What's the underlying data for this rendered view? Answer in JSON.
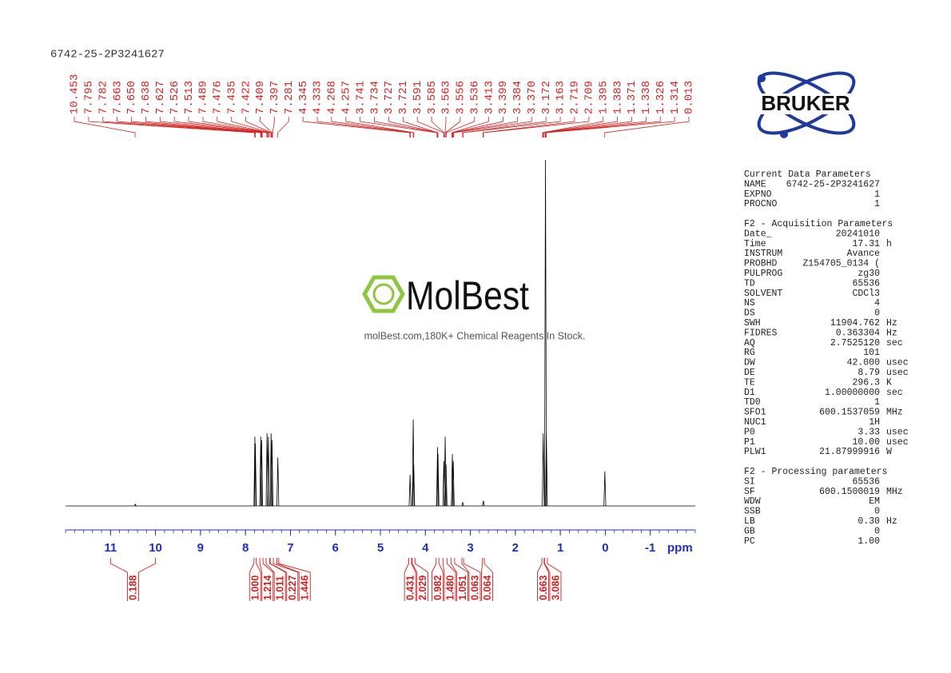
{
  "title": "6742-25-2P3241627",
  "watermark": {
    "brand": "MolBest",
    "tagline": "molBest.com,180K+ Chemical Reagents In Stock."
  },
  "logo": "BRUKER",
  "chart_data": {
    "type": "nmr",
    "x_label": "ppm",
    "xlim": [
      12.0,
      -2.0
    ],
    "xticks": [
      11,
      10,
      9,
      8,
      7,
      6,
      5,
      4,
      3,
      2,
      1,
      0,
      -1
    ],
    "ylim": [
      0,
      100
    ],
    "color": "#000000",
    "label_color": "#d42020",
    "axis_color": "#1f2fbf",
    "signals": {
      "x": [
        10.45,
        7.79,
        7.78,
        7.66,
        7.64,
        7.52,
        7.49,
        7.43,
        7.41,
        7.28,
        4.34,
        4.27,
        4.26,
        3.73,
        3.72,
        3.59,
        3.56,
        3.54,
        3.4,
        3.38,
        3.17,
        2.71,
        1.38,
        1.33,
        1.31,
        0.01
      ],
      "values": [
        0.5,
        20,
        18,
        20,
        19,
        21,
        20,
        21,
        19,
        14,
        9,
        25,
        12,
        17,
        15,
        13,
        20,
        12,
        15,
        13,
        1,
        1.5,
        21,
        100,
        21,
        10
      ]
    },
    "peaks": {
      "values": [
        10.453,
        7.795,
        7.782,
        7.663,
        7.65,
        7.638,
        7.627,
        7.526,
        7.513,
        7.489,
        7.476,
        7.435,
        7.422,
        7.409,
        7.397,
        7.281,
        4.345,
        4.333,
        4.268,
        4.257,
        3.741,
        3.734,
        3.727,
        3.721,
        3.591,
        3.585,
        3.563,
        3.556,
        3.536,
        3.413,
        3.399,
        3.384,
        3.37,
        3.172,
        3.163,
        2.719,
        2.709,
        1.395,
        1.383,
        1.371,
        1.338,
        1.326,
        1.314,
        0.013
      ],
      "value_labels": [
        "10.453",
        "7.795",
        "7.782",
        "7.663",
        "7.650",
        "7.638",
        "7.627",
        "7.526",
        "7.513",
        "7.489",
        "7.476",
        "7.435",
        "7.422",
        "7.409",
        "7.397",
        "7.281",
        "4.345",
        "4.333",
        "4.268",
        "4.257",
        "3.741",
        "3.734",
        "3.727",
        "3.721",
        "3.591",
        "3.585",
        "3.563",
        "3.556",
        "3.536",
        "3.413",
        "3.399",
        "3.384",
        "3.370",
        "3.172",
        "3.163",
        "2.719",
        "2.709",
        "1.395",
        "1.383",
        "1.371",
        "1.338",
        "1.326",
        "1.314",
        "0.013"
      ]
    },
    "integrals": {
      "ranges": [
        [
          11.0,
          10.0
        ],
        [
          7.81,
          7.76
        ],
        [
          7.68,
          7.61
        ],
        [
          7.54,
          7.46
        ],
        [
          7.45,
          7.38
        ],
        [
          7.3,
          7.26
        ],
        [
          4.37,
          4.31
        ],
        [
          4.29,
          4.23
        ],
        [
          3.76,
          3.7
        ],
        [
          3.61,
          3.52
        ],
        [
          3.43,
          3.35
        ],
        [
          3.19,
          3.15
        ],
        [
          2.73,
          2.69
        ],
        [
          1.41,
          1.36
        ],
        [
          1.35,
          1.29
        ]
      ],
      "values": [
        0.188,
        1,
        1.214,
        1.011,
        0.227,
        1.446,
        0.431,
        2.029,
        0.982,
        1.48,
        1.051,
        0.063,
        0.064,
        0.663,
        3.086
      ],
      "value_labels": [
        "0.188",
        "1.000",
        "1.214",
        "1.011",
        "0.227",
        "1.446",
        "0.431",
        "2.029",
        "0.982",
        "1.480",
        "1.051",
        "0.063",
        "0.064",
        "0.663",
        "3.086"
      ]
    }
  },
  "parameters": [
    {
      "title": "Current Data Parameters",
      "rows": [
        [
          "NAME",
          "6742-25-2P3241627"
        ],
        [
          "EXPNO",
          "1"
        ],
        [
          "PROCNO",
          "1"
        ]
      ]
    },
    {
      "title": "F2 - Acquisition Parameters",
      "rows": [
        [
          "Date_",
          "20241010"
        ],
        [
          "Time",
          "17.31",
          "h"
        ],
        [
          "INSTRUM",
          "Avance"
        ],
        [
          "PROBHD",
          "Z154705_0134 ("
        ],
        [
          "PULPROG",
          "zg30"
        ],
        [
          "TD",
          "65536"
        ],
        [
          "SOLVENT",
          "CDCl3"
        ],
        [
          "NS",
          "4"
        ],
        [
          "DS",
          "0"
        ],
        [
          "SWH",
          "11904.762",
          "Hz"
        ],
        [
          "FIDRES",
          "0.363304",
          "Hz"
        ],
        [
          "AQ",
          "2.7525120",
          "sec"
        ],
        [
          "RG",
          "101"
        ],
        [
          "DW",
          "42.000",
          "usec"
        ],
        [
          "DE",
          "8.79",
          "usec"
        ],
        [
          "TE",
          "296.3",
          "K"
        ],
        [
          "D1",
          "1.00000000",
          "sec"
        ],
        [
          "TD0",
          "1"
        ],
        [
          "SFO1",
          "600.1537059",
          "MHz"
        ],
        [
          "NUC1",
          "1H"
        ],
        [
          "P0",
          "3.33",
          "usec"
        ],
        [
          "P1",
          "10.00",
          "usec"
        ],
        [
          "PLW1",
          "21.87999916",
          "W"
        ]
      ]
    },
    {
      "title": "F2 - Processing parameters",
      "rows": [
        [
          "SI",
          "65536"
        ],
        [
          "SF",
          "600.1500019",
          "MHz"
        ],
        [
          "WDW",
          "EM"
        ],
        [
          "SSB",
          "0"
        ],
        [
          "LB",
          "0.30",
          "Hz"
        ],
        [
          "GB",
          "0"
        ],
        [
          "PC",
          "1.00"
        ]
      ]
    }
  ]
}
